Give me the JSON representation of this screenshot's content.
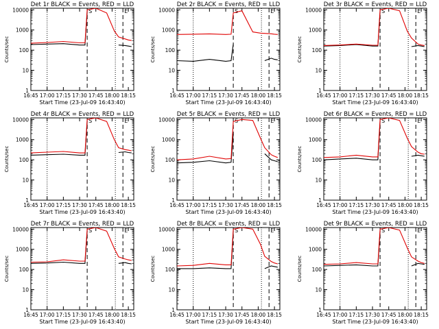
{
  "colors": {
    "events": "#000000",
    "lld": "#e00000",
    "axes": "#000000",
    "background": "#ffffff"
  },
  "common": {
    "ylabel": "Counts/sec",
    "xlabel": "Start Time (23-Jul-09 16:43:40)",
    "xticks": [
      "16:45",
      "17:00",
      "17:15",
      "17:30",
      "17:45",
      "18:00",
      "18:15"
    ],
    "yticks": [
      "1",
      "10",
      "100",
      "1000",
      "10000"
    ],
    "y_scale": "log",
    "ylim": [
      1,
      12000
    ],
    "markers": {
      "dotted": [
        "17:00",
        "18:03"
      ],
      "dashed": [
        "17:37",
        "18:10"
      ],
      "flags": [
        "S",
        "E"
      ]
    }
  },
  "chart_data": [
    {
      "type": "line",
      "title": "Det 1r BLACK = Events, RED = LLD",
      "x": [
        "16:45",
        "17:00",
        "17:15",
        "17:30",
        "17:35",
        "17:37",
        "17:45",
        "17:55",
        "18:02",
        "18:06",
        "18:12",
        "18:15",
        "18:18"
      ],
      "series": [
        {
          "name": "Events",
          "values": [
            190,
            200,
            210,
            180,
            180,
            8000,
            null,
            null,
            null,
            180,
            170,
            160,
            150
          ]
        },
        {
          "name": "LLD",
          "values": [
            220,
            240,
            270,
            230,
            230,
            10000,
            12000,
            7000,
            900,
            450,
            360,
            320,
            300
          ]
        }
      ]
    },
    {
      "type": "line",
      "title": "Det 2r BLACK = Events, RED = LLD",
      "x": [
        "16:45",
        "17:00",
        "17:15",
        "17:30",
        "17:35",
        "17:37",
        "17:45",
        "17:55",
        "18:02",
        "18:06",
        "18:12",
        "18:15",
        "18:18"
      ],
      "series": [
        {
          "name": "Events",
          "values": [
            30,
            28,
            35,
            28,
            30,
            200,
            null,
            null,
            null,
            30,
            40,
            35,
            33
          ]
        },
        {
          "name": "LLD",
          "values": [
            600,
            620,
            640,
            600,
            620,
            7000,
            9000,
            800,
            700,
            680,
            650,
            620,
            600
          ]
        }
      ]
    },
    {
      "type": "line",
      "title": "Det 3r BLACK = Events, RED = LLD",
      "x": [
        "16:45",
        "17:00",
        "17:15",
        "17:30",
        "17:35",
        "17:37",
        "17:45",
        "17:55",
        "18:02",
        "18:06",
        "18:12",
        "18:15",
        "18:18"
      ],
      "series": [
        {
          "name": "Events",
          "values": [
            160,
            170,
            190,
            160,
            160,
            8000,
            null,
            null,
            null,
            150,
            170,
            160,
            150
          ]
        },
        {
          "name": "LLD",
          "values": [
            170,
            180,
            200,
            175,
            175,
            10000,
            12000,
            9000,
            900,
            400,
            200,
            180,
            170
          ]
        }
      ]
    },
    {
      "type": "line",
      "title": "Det 4r BLACK = Events, RED = LLD",
      "x": [
        "16:45",
        "17:00",
        "17:15",
        "17:30",
        "17:35",
        "17:37",
        "17:45",
        "17:55",
        "18:02",
        "18:06",
        "18:12",
        "18:15",
        "18:18"
      ],
      "series": [
        {
          "name": "Events",
          "values": [
            170,
            180,
            190,
            170,
            170,
            8000,
            null,
            null,
            null,
            230,
            250,
            230,
            220
          ]
        },
        {
          "name": "LLD",
          "values": [
            220,
            240,
            260,
            220,
            220,
            10000,
            12000,
            8000,
            1000,
            400,
            320,
            300,
            280
          ]
        }
      ]
    },
    {
      "type": "line",
      "title": "Det 5r BLACK = Events, RED = LLD",
      "x": [
        "16:45",
        "17:00",
        "17:15",
        "17:30",
        "17:35",
        "17:37",
        "17:45",
        "17:55",
        "18:02",
        "18:06",
        "18:12",
        "18:15",
        "18:18"
      ],
      "series": [
        {
          "name": "Events",
          "values": [
            70,
            75,
            90,
            70,
            75,
            2000,
            null,
            null,
            null,
            200,
            100,
            90,
            80
          ]
        },
        {
          "name": "LLD",
          "values": [
            100,
            110,
            150,
            110,
            115,
            8000,
            10000,
            9000,
            1200,
            400,
            180,
            150,
            130
          ]
        }
      ]
    },
    {
      "type": "line",
      "title": "Det 6r BLACK = Events, RED = LLD",
      "x": [
        "16:45",
        "17:00",
        "17:15",
        "17:30",
        "17:35",
        "17:37",
        "17:45",
        "17:55",
        "18:02",
        "18:06",
        "18:12",
        "18:15",
        "18:18"
      ],
      "series": [
        {
          "name": "Events",
          "values": [
            100,
            110,
            120,
            100,
            100,
            8000,
            null,
            null,
            null,
            150,
            170,
            160,
            150
          ]
        },
        {
          "name": "LLD",
          "values": [
            130,
            140,
            170,
            140,
            140,
            10000,
            12000,
            9000,
            1200,
            450,
            240,
            200,
            190
          ]
        }
      ]
    },
    {
      "type": "line",
      "title": "Det 7r BLACK = Events, RED = LLD",
      "x": [
        "16:45",
        "17:00",
        "17:15",
        "17:30",
        "17:35",
        "17:37",
        "17:45",
        "17:55",
        "18:02",
        "18:06",
        "18:12",
        "18:15",
        "18:18"
      ],
      "series": [
        {
          "name": "Events",
          "values": [
            200,
            210,
            230,
            200,
            200,
            8000,
            null,
            null,
            null,
            200,
            220,
            200,
            190
          ]
        },
        {
          "name": "LLD",
          "values": [
            230,
            240,
            300,
            260,
            260,
            10000,
            12000,
            8000,
            1100,
            420,
            330,
            300,
            280
          ]
        }
      ]
    },
    {
      "type": "line",
      "title": "Det 8r BLACK = Events, RED = LLD",
      "x": [
        "16:45",
        "17:00",
        "17:15",
        "17:30",
        "17:35",
        "17:37",
        "17:45",
        "17:55",
        "18:02",
        "18:06",
        "18:12",
        "18:15",
        "18:18"
      ],
      "series": [
        {
          "name": "Events",
          "values": [
            110,
            110,
            120,
            110,
            110,
            8000,
            null,
            null,
            null,
            110,
            150,
            140,
            130
          ]
        },
        {
          "name": "LLD",
          "values": [
            150,
            160,
            200,
            170,
            170,
            10000,
            12000,
            10000,
            1800,
            450,
            250,
            210,
            190
          ]
        }
      ]
    },
    {
      "type": "line",
      "title": "Det 9r BLACK = Events, RED = LLD",
      "x": [
        "16:45",
        "17:00",
        "17:15",
        "17:30",
        "17:35",
        "17:37",
        "17:45",
        "17:55",
        "18:02",
        "18:06",
        "18:12",
        "18:15",
        "18:18"
      ],
      "series": [
        {
          "name": "Events",
          "values": [
            150,
            160,
            170,
            150,
            150,
            8000,
            null,
            null,
            null,
            150,
            200,
            190,
            180
          ]
        },
        {
          "name": "LLD",
          "values": [
            180,
            190,
            220,
            190,
            190,
            10000,
            12000,
            9000,
            1200,
            420,
            260,
            220,
            200
          ]
        }
      ]
    }
  ]
}
